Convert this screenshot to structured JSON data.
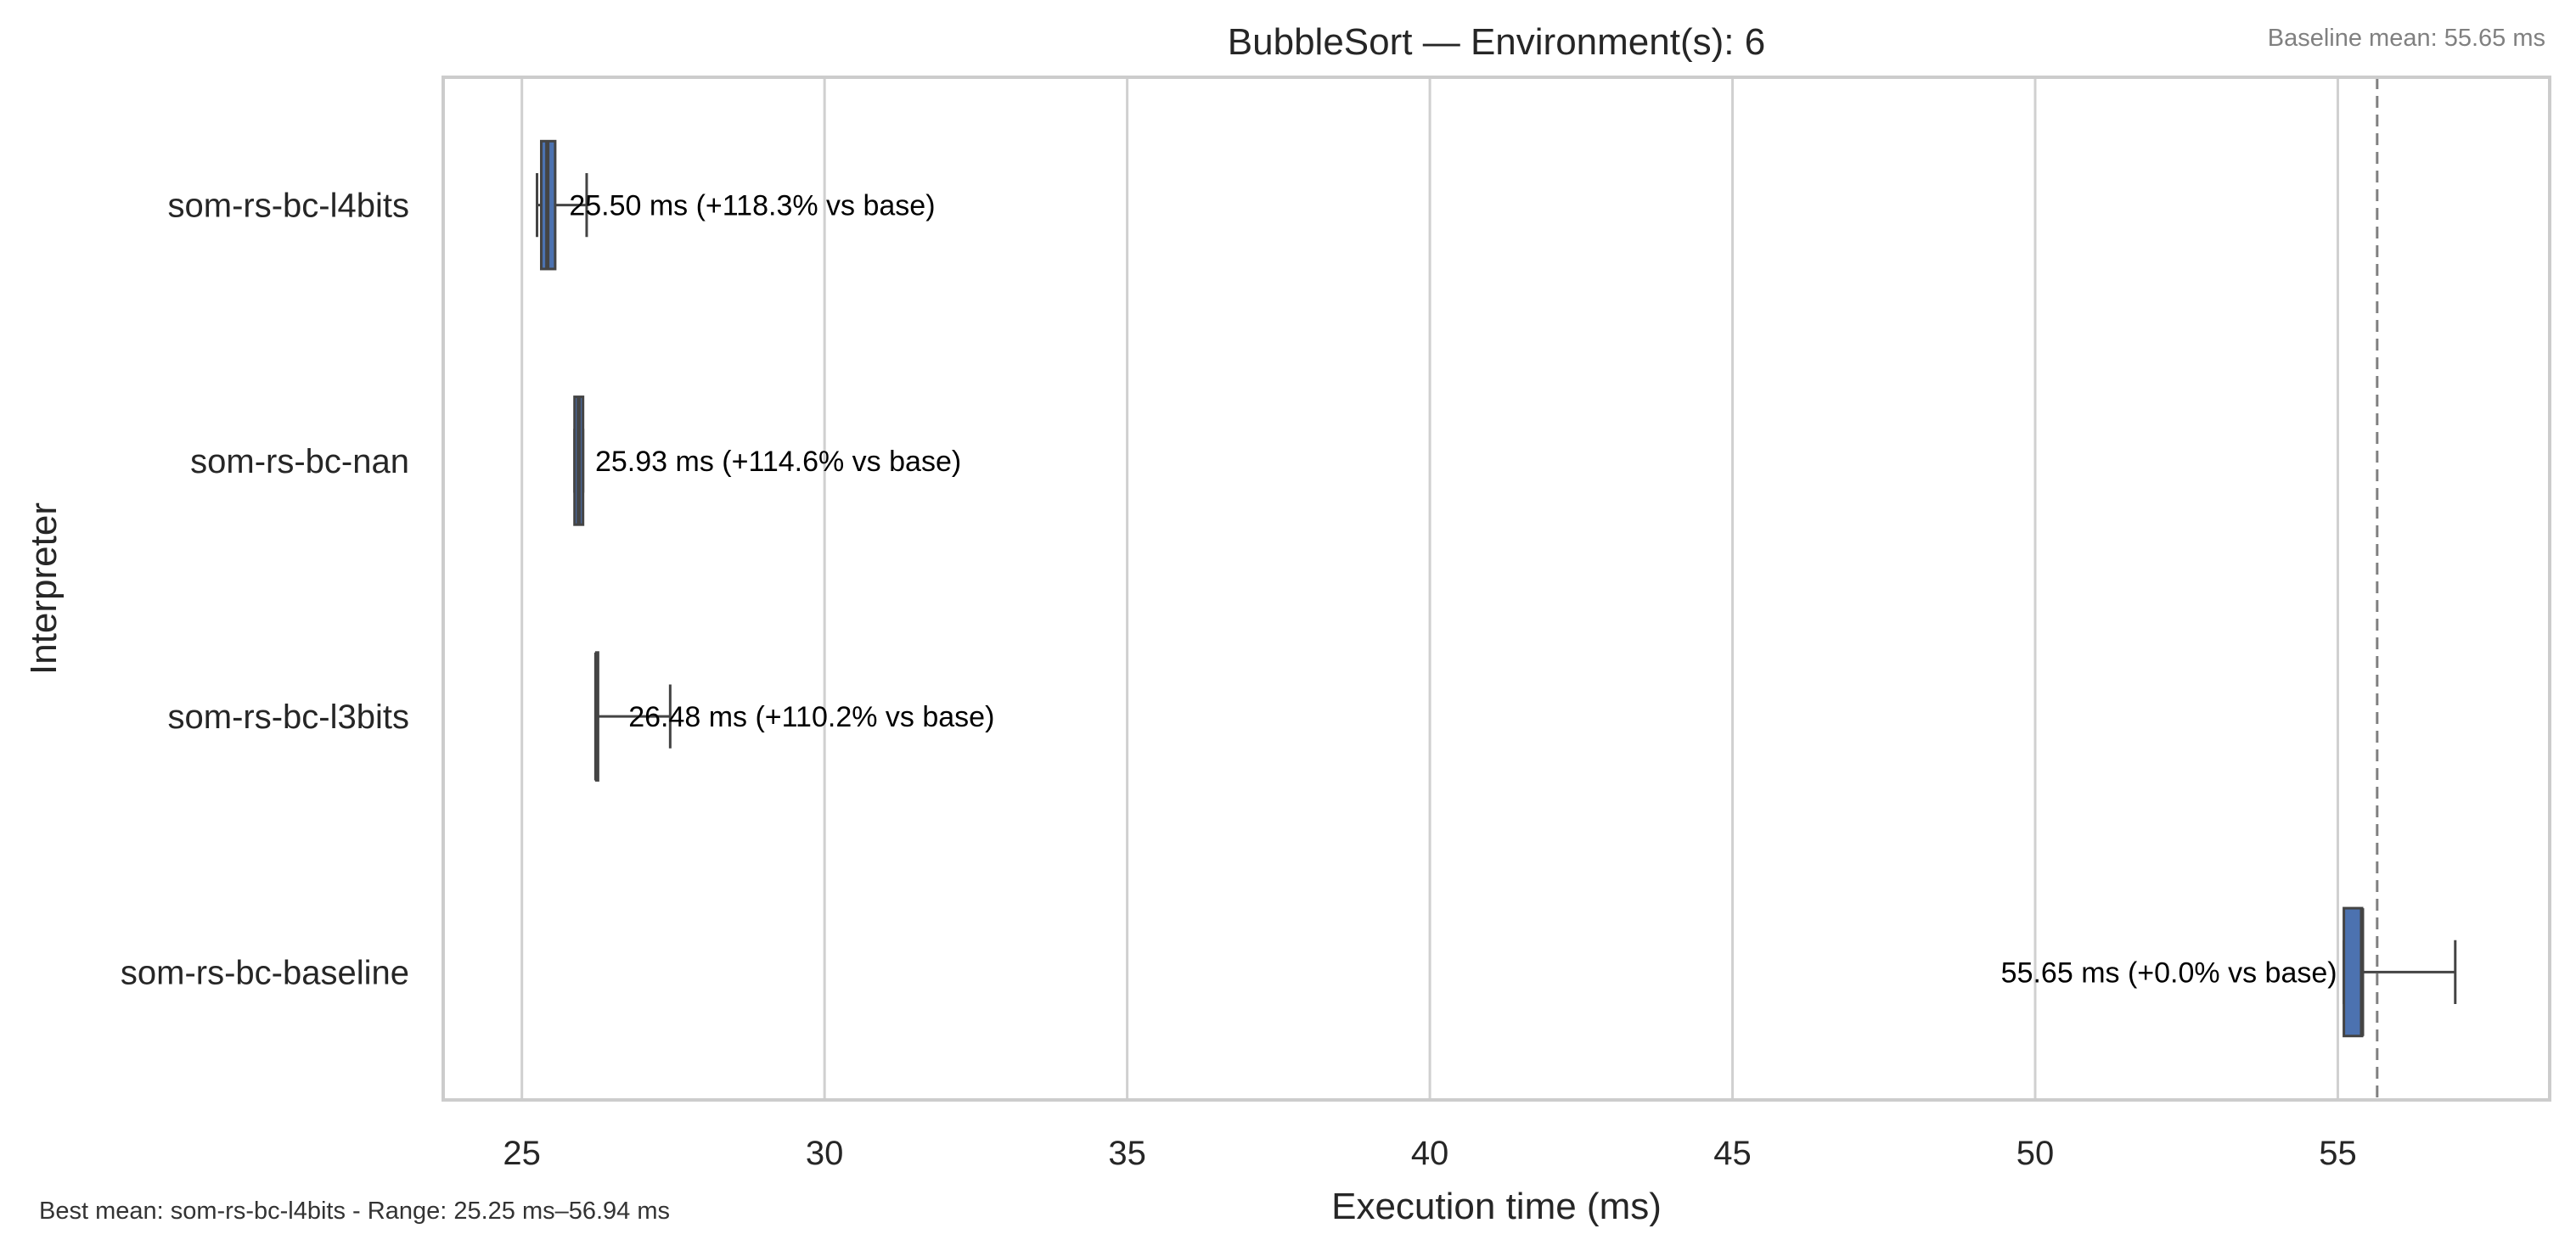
{
  "chart_data": {
    "type": "boxplot",
    "orientation": "horizontal",
    "title": "BubbleSort — Environment(s): 6",
    "xlabel": "Execution time (ms)",
    "ylabel": "Interpreter",
    "xlim": [
      23.7,
      58.5
    ],
    "xticks": [
      25,
      30,
      35,
      40,
      45,
      50,
      55
    ],
    "grid": "vertical",
    "box_color": "#4c72b0",
    "line_color": "#444444",
    "baseline_line_color": "#808080",
    "baseline_mean": 55.65,
    "baseline_label": "Baseline mean: 55.65 ms",
    "footnote": "Best mean: som-rs-bc-l4bits - Range: 25.25 ms–56.94 ms",
    "categories": [
      "som-rs-bc-l4bits",
      "som-rs-bc-nan",
      "som-rs-bc-l3bits",
      "som-rs-bc-baseline"
    ],
    "series": [
      {
        "category": "som-rs-bc-l4bits",
        "whisker_low": 25.25,
        "q1": 25.32,
        "median": 25.42,
        "q3": 25.55,
        "whisker_high": 26.07,
        "mean": 25.5,
        "label": "25.50 ms  (+118.3% vs base)",
        "label_anchor": "right"
      },
      {
        "category": "som-rs-bc-nan",
        "whisker_low": 25.87,
        "q1": 25.87,
        "median": 25.94,
        "q3": 26.01,
        "whisker_high": 26.01,
        "mean": 25.93,
        "label": "25.93 ms  (+114.6% vs base)",
        "label_anchor": "right"
      },
      {
        "category": "som-rs-bc-l3bits",
        "whisker_low": 26.23,
        "q1": 26.23,
        "median": 26.23,
        "q3": 26.23,
        "whisker_high": 27.45,
        "mean": 26.48,
        "label": "26.48 ms  (+110.2% vs base)",
        "label_anchor": "right"
      },
      {
        "category": "som-rs-bc-baseline",
        "whisker_low": 55.1,
        "q1": 55.1,
        "median": 55.4,
        "q3": 55.4,
        "whisker_high": 56.94,
        "mean": 55.65,
        "label": "55.65 ms  (+0.0% vs base)",
        "label_anchor": "left"
      }
    ]
  }
}
